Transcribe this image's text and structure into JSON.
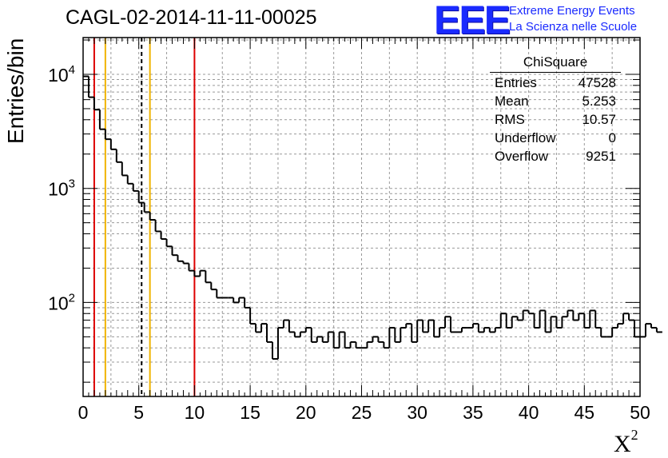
{
  "chart_data": {
    "type": "bar",
    "title": "CAGL-02-2014-11-11-00025",
    "xlabel": "X",
    "xlabel_sup": "2",
    "ylabel": "Entries/bin",
    "log_y": true,
    "xlim": [
      0,
      50
    ],
    "ylim": [
      15,
      21000
    ],
    "grid": true,
    "bin_width": 0.5,
    "x_ticks": [
      "0",
      "5",
      "10",
      "15",
      "20",
      "25",
      "30",
      "35",
      "40",
      "45",
      "50"
    ],
    "y_ticks": [
      {
        "base": "10",
        "exp": "2",
        "value": 100
      },
      {
        "base": "10",
        "exp": "3",
        "value": 1000
      },
      {
        "base": "10",
        "exp": "4",
        "value": 10000
      }
    ],
    "values": [
      9600,
      6300,
      4900,
      3300,
      2700,
      2200,
      1700,
      1300,
      1100,
      950,
      750,
      620,
      530,
      420,
      360,
      310,
      260,
      230,
      220,
      190,
      170,
      190,
      150,
      130,
      110,
      110,
      110,
      100,
      110,
      90,
      65,
      55,
      65,
      45,
      32,
      60,
      70,
      55,
      50,
      55,
      60,
      45,
      50,
      45,
      55,
      40,
      55,
      40,
      45,
      40,
      40,
      45,
      50,
      45,
      40,
      60,
      45,
      60,
      65,
      45,
      70,
      55,
      70,
      50,
      60,
      75,
      55,
      55,
      60,
      60,
      65,
      55,
      60,
      55,
      60,
      80,
      60,
      75,
      70,
      85,
      80,
      60,
      85,
      55,
      75,
      60,
      75,
      85,
      70,
      80,
      60,
      85,
      60,
      50,
      50,
      60,
      65,
      80,
      70,
      50,
      50,
      65,
      60,
      55
    ],
    "vertical_lines": [
      {
        "x": 1,
        "color": "#dd0000",
        "style": "solid"
      },
      {
        "x": 2,
        "color": "#f0b400",
        "style": "solid"
      },
      {
        "x": 5.253,
        "color": "#000000",
        "style": "dashed"
      },
      {
        "x": 6,
        "color": "#f0b400",
        "style": "solid"
      },
      {
        "x": 10,
        "color": "#dd0000",
        "style": "solid"
      }
    ]
  },
  "logo": {
    "mark": "EEE",
    "line1": "Extreme Energy Events",
    "line2": "La Scienza nelle Scuole",
    "color": "#1a2aff"
  },
  "stats": {
    "name": "ChiSquare",
    "rows": [
      {
        "label": "Entries",
        "value": "47528"
      },
      {
        "label": "Mean",
        "value": "5.253"
      },
      {
        "label": "RMS",
        "value": "10.57"
      },
      {
        "label": "Underflow",
        "value": "0"
      },
      {
        "label": "Overflow",
        "value": "9251"
      }
    ]
  }
}
